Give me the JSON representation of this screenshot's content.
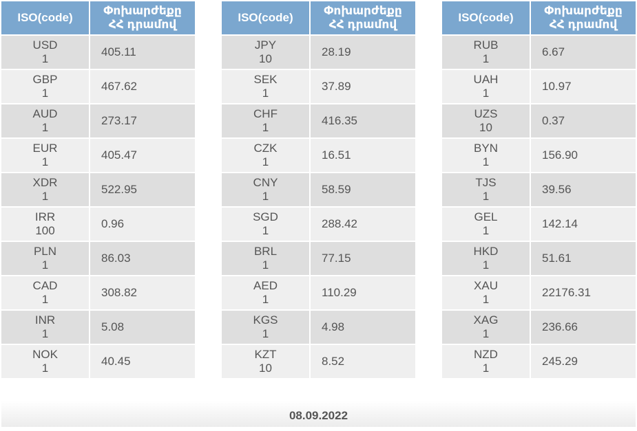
{
  "headers": {
    "code": "ISO(code)",
    "rate_line1": "Փոխարժեքը",
    "rate_line2": "ՀՀ դրամով"
  },
  "tables": [
    [
      {
        "code": "USD",
        "unit": "1",
        "rate": "405.11"
      },
      {
        "code": "GBP",
        "unit": "1",
        "rate": "467.62"
      },
      {
        "code": "AUD",
        "unit": "1",
        "rate": "273.17"
      },
      {
        "code": "EUR",
        "unit": "1",
        "rate": "405.47"
      },
      {
        "code": "XDR",
        "unit": "1",
        "rate": "522.95"
      },
      {
        "code": "IRR",
        "unit": "100",
        "rate": "0.96"
      },
      {
        "code": "PLN",
        "unit": "1",
        "rate": "86.03"
      },
      {
        "code": "CAD",
        "unit": "1",
        "rate": "308.82"
      },
      {
        "code": "INR",
        "unit": "1",
        "rate": "5.08"
      },
      {
        "code": "NOK",
        "unit": "1",
        "rate": "40.45"
      }
    ],
    [
      {
        "code": "JPY",
        "unit": "10",
        "rate": "28.19"
      },
      {
        "code": "SEK",
        "unit": "1",
        "rate": "37.89"
      },
      {
        "code": "CHF",
        "unit": "1",
        "rate": "416.35"
      },
      {
        "code": "CZK",
        "unit": "1",
        "rate": "16.51"
      },
      {
        "code": "CNY",
        "unit": "1",
        "rate": "58.59"
      },
      {
        "code": "SGD",
        "unit": "1",
        "rate": "288.42"
      },
      {
        "code": "BRL",
        "unit": "1",
        "rate": "77.15"
      },
      {
        "code": "AED",
        "unit": "1",
        "rate": "110.29"
      },
      {
        "code": "KGS",
        "unit": "1",
        "rate": "4.98"
      },
      {
        "code": "KZT",
        "unit": "10",
        "rate": "8.52"
      }
    ],
    [
      {
        "code": "RUB",
        "unit": "1",
        "rate": "6.67"
      },
      {
        "code": "UAH",
        "unit": "1",
        "rate": "10.97"
      },
      {
        "code": "UZS",
        "unit": "10",
        "rate": "0.37"
      },
      {
        "code": "BYN",
        "unit": "1",
        "rate": "156.90"
      },
      {
        "code": "TJS",
        "unit": "1",
        "rate": "39.56"
      },
      {
        "code": "GEL",
        "unit": "1",
        "rate": "142.14"
      },
      {
        "code": "HKD",
        "unit": "1",
        "rate": "51.61"
      },
      {
        "code": "XAU",
        "unit": "1",
        "rate": "22176.31"
      },
      {
        "code": "XAG",
        "unit": "1",
        "rate": "236.66"
      },
      {
        "code": "NZD",
        "unit": "1",
        "rate": "245.29"
      }
    ]
  ],
  "footer": {
    "date": "08.09.2022"
  },
  "colors": {
    "header_bg": "#7ba7cf",
    "row_dark": "#dedede",
    "row_light": "#efefef",
    "text": "#555555"
  }
}
